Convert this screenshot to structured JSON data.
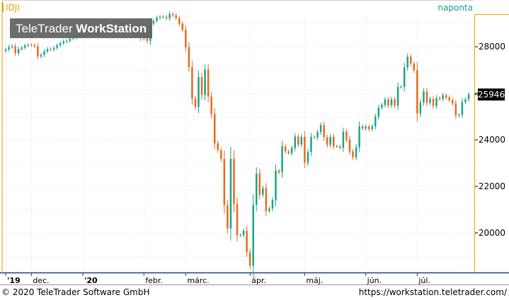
{
  "header": {
    "symbol": "IDJI",
    "period": "naponta"
  },
  "watermark": {
    "text_light": "TeleTrader",
    "text_bold": "WorkStation"
  },
  "footer": {
    "copyright": "© 2020 TeleTrader Software GmbH",
    "website": "https://workstation.teletrader.com/"
  },
  "colors": {
    "up": "#1aa38a",
    "down": "#e8691f",
    "axis_border": "#e0a500",
    "symbol_color": "#e0a500",
    "period_color": "#1a9e86",
    "last_price_bg": "#000000",
    "last_price_fg": "#ffffff"
  },
  "chart_data": {
    "type": "candlestick",
    "title": "IDJI",
    "y_axis_ticks": [
      20000,
      22000,
      24000,
      26000,
      28000
    ],
    "ylim": [
      18300,
      29400
    ],
    "grid": true,
    "last_price": "25946",
    "x_labels": [
      {
        "label": "'19",
        "index": 0
      },
      {
        "label": "dec.",
        "index": 8
      },
      {
        "label": "'20",
        "index": 24
      },
      {
        "label": "febr.",
        "index": 43
      },
      {
        "label": "márc.",
        "index": 56
      },
      {
        "label": "ápr.",
        "index": 76
      },
      {
        "label": "máj.",
        "index": 93
      },
      {
        "label": "jún.",
        "index": 112
      },
      {
        "label": "júl.",
        "index": 128
      }
    ],
    "close": [
      27880,
      27980,
      28020,
      27720,
      27900,
      27960,
      28050,
      28080,
      28070,
      28020,
      27580,
      27650,
      27800,
      27900,
      27880,
      27950,
      28060,
      28150,
      28230,
      28250,
      28350,
      28390,
      28530,
      28470,
      28500,
      28560,
      28540,
      28490,
      28540,
      28630,
      28750,
      28830,
      28930,
      29040,
      29080,
      29000,
      29060,
      28950,
      28890,
      28730,
      28560,
      28720,
      28360,
      28540,
      28250,
      29000,
      29110,
      29240,
      29280,
      29290,
      29220,
      29410,
      29350,
      29230,
      28990,
      28730,
      27980,
      27120,
      25770,
      25410,
      26700,
      25920,
      27010,
      25860,
      25100,
      23850,
      23550,
      23180,
      21200,
      20190,
      23180,
      21240,
      19900,
      19900,
      20090,
      19170,
      18590,
      21200,
      22550,
      21640,
      21920,
      20940,
      21050,
      21410,
      22680,
      22600,
      23720,
      23500,
      23430,
      23650,
      24140,
      23800,
      24130,
      23020,
      23480,
      24130,
      24100,
      24330,
      24630,
      24110,
      23780,
      24130,
      23720,
      23720,
      23650,
      24350,
      24010,
      23500,
      23250,
      23680,
      24580,
      24480,
      24570,
      24460,
      24580,
      24990,
      25380,
      25500,
      25730,
      25480,
      25740,
      25470,
      26270,
      26280,
      27110,
      27570,
      27270,
      26990,
      25130,
      25600,
      26080,
      25590,
      25760,
      25450,
      25800,
      25750,
      25920,
      25820,
      25700,
      25560,
      25050,
      25080,
      25620,
      25740,
      25950
    ]
  }
}
